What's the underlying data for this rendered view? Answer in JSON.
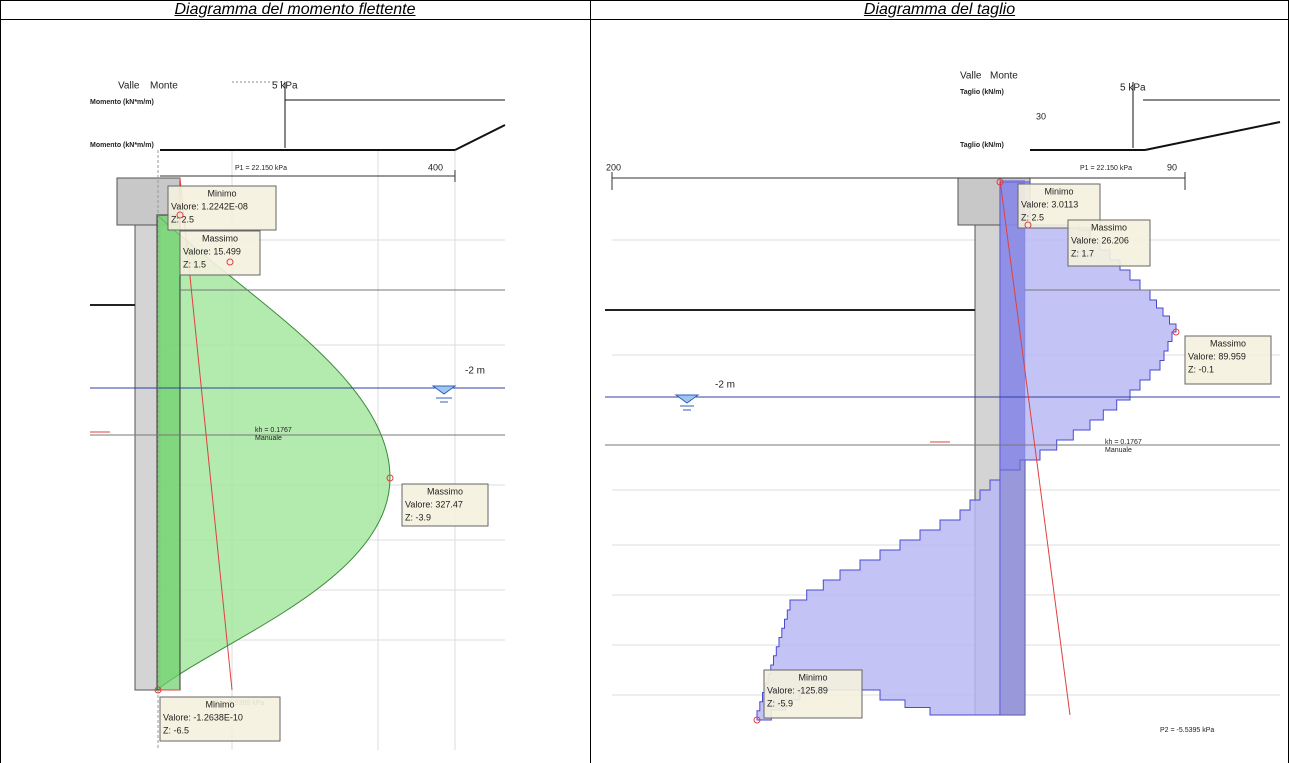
{
  "left": {
    "title": "Diagramma del momento flettente",
    "valle": "Valle",
    "monte": "Monte",
    "load": "5 kPa",
    "axis_title": "Momento (kN*m/m)",
    "axis_max": "400",
    "p1": "P1 = 22.150 kPa",
    "p2": "P2 = -5.5395 kPa",
    "kh": "kh = 0.1767",
    "kh_mode": "Manuale",
    "water": "-2 m",
    "boxes": [
      {
        "title": "Minimo",
        "value": "Valore: 1.2242E-08",
        "z": "Z: 2.5"
      },
      {
        "title": "Massimo",
        "value": "Valore: 15.499",
        "z": "Z: 1.5"
      },
      {
        "title": "Massimo",
        "value": "Valore: 327.47",
        "z": "Z: -3.9"
      },
      {
        "title": "Minimo",
        "value": "Valore: -1.2638E-10",
        "z": "Z: -6.5"
      }
    ]
  },
  "right": {
    "title": "Diagramma del taglio",
    "valle": "Valle",
    "monte": "Monte",
    "load": "5 kPa",
    "axis_title": "Taglio (kN/m)",
    "axis_min": "200",
    "axis_max": "90",
    "axis_mid": "30",
    "p1": "P1 = 22.150 kPa",
    "p2": "P2 = -5.5395 kPa",
    "kh": "kh = 0.1767",
    "kh_mode": "Manuale",
    "water": "-2 m",
    "boxes": [
      {
        "title": "Minimo",
        "value": "Valore: 3.0113",
        "z": "Z: 2.5"
      },
      {
        "title": "Massimo",
        "value": "Valore: 26.206",
        "z": "Z: 1.7"
      },
      {
        "title": "Massimo",
        "value": "Valore: 89.959",
        "z": "Z: -0.1"
      },
      {
        "title": "Minimo",
        "value": "Valore: -125.89",
        "z": "Z: -5.9"
      }
    ]
  }
}
